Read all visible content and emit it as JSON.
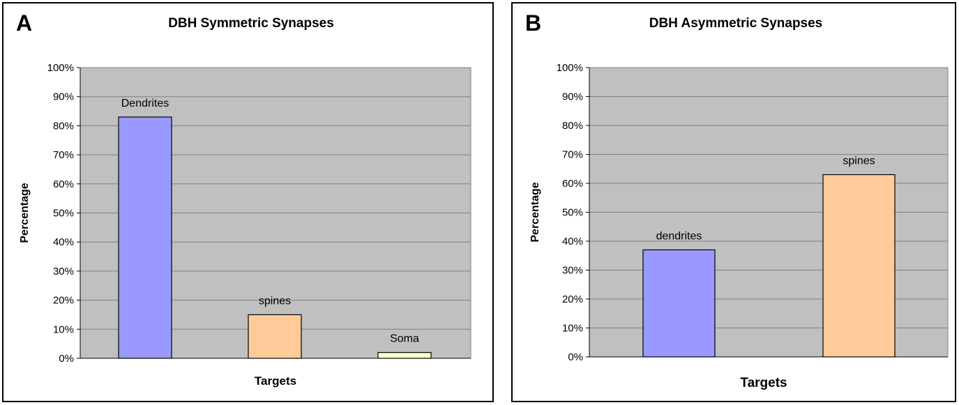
{
  "panels": [
    {
      "letter": "A",
      "chart_data": {
        "type": "bar",
        "title": "DBH Symmetric Synapses",
        "xlabel": "Targets",
        "ylabel": "Percentage",
        "categories": [
          "Dendrites",
          "spines",
          "Soma"
        ],
        "values": [
          83,
          15,
          2
        ],
        "colors": [
          "#9999FF",
          "#FFCC99",
          "#FFFFCC"
        ],
        "ylim": [
          0,
          100
        ],
        "yticks": [
          "0%",
          "10%",
          "20%",
          "30%",
          "40%",
          "50%",
          "60%",
          "70%",
          "80%",
          "90%",
          "100%"
        ],
        "grid": true,
        "plot_background": "#C0C0C0"
      }
    },
    {
      "letter": "B",
      "chart_data": {
        "type": "bar",
        "title": "DBH Asymmetric Synapses",
        "xlabel": "Targets",
        "ylabel": "Percentage",
        "categories": [
          "dendrites",
          "spines"
        ],
        "values": [
          37,
          63
        ],
        "colors": [
          "#9999FF",
          "#FFCC99"
        ],
        "ylim": [
          0,
          100
        ],
        "yticks": [
          "0%",
          "10%",
          "20%",
          "30%",
          "40%",
          "50%",
          "60%",
          "70%",
          "80%",
          "90%",
          "100%"
        ],
        "grid": true,
        "plot_background": "#C0C0C0"
      }
    }
  ]
}
